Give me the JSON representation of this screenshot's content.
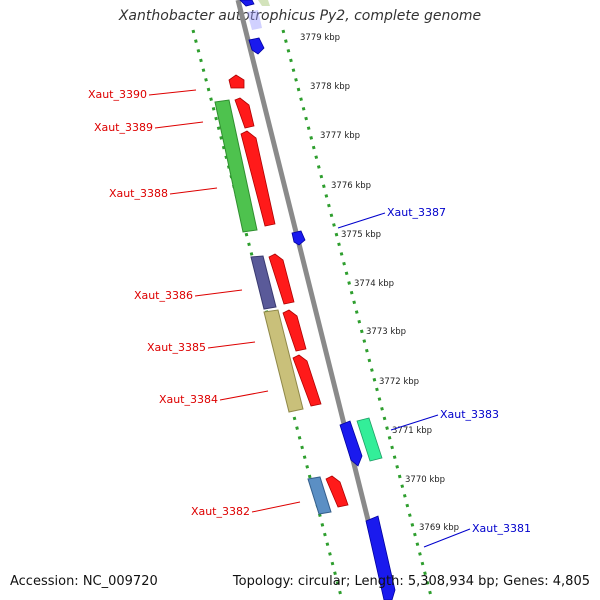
{
  "title": "Xanthobacter autotrophicus Py2, complete genome",
  "accession": "Accession: NC_009720",
  "summary": "Topology: circular; Length: 5,308,934 bp; Genes: 4,805",
  "colors": {
    "backbone": "#8a8a8a",
    "dots": "#2e9e2e",
    "left_label": "#dd0000",
    "right_label": "#0000cc"
  },
  "ticks": [
    "3779 kbp",
    "3778 kbp",
    "3777 kbp",
    "3776 kbp",
    "3775 kbp",
    "3774 kbp",
    "3773 kbp",
    "3772 kbp",
    "3771 kbp",
    "3770 kbp",
    "3769 kbp"
  ],
  "labels_left": [
    "Xaut_3390",
    "Xaut_3389",
    "Xaut_3388",
    "Xaut_3386",
    "Xaut_3385",
    "Xaut_3384",
    "Xaut_3382"
  ],
  "labels_right": [
    "Xaut_3387",
    "Xaut_3383",
    "Xaut_3381"
  ]
}
